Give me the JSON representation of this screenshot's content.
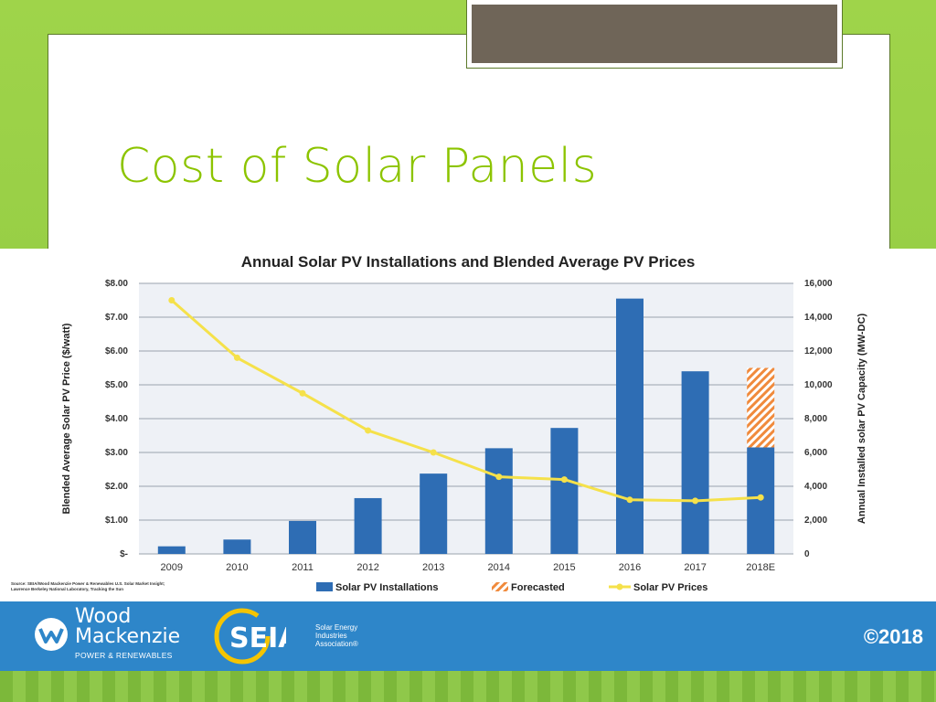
{
  "slide": {
    "title": "Cost of Solar Panels"
  },
  "colors": {
    "bar": "#2e6db4",
    "forecast": "#f08a3c",
    "price_line": "#f5e14a",
    "title_green": "#8cc400",
    "footer_blue": "#2e86c9"
  },
  "chart_data": {
    "type": "bar",
    "title": "Annual Solar PV Installations and Blended Average PV Prices",
    "categories": [
      "2009",
      "2010",
      "2011",
      "2012",
      "2013",
      "2014",
      "2015",
      "2016",
      "2017",
      "2018E"
    ],
    "series": [
      {
        "name": "Solar PV Installations",
        "type": "bar",
        "axis": "right",
        "values": [
          450,
          850,
          1950,
          3300,
          4750,
          6250,
          7450,
          15100,
          10800,
          6300
        ]
      },
      {
        "name": "Forecasted",
        "type": "bar-stacked",
        "axis": "right",
        "values": [
          0,
          0,
          0,
          0,
          0,
          0,
          0,
          0,
          0,
          4700
        ]
      },
      {
        "name": "Solar PV Prices",
        "type": "line",
        "axis": "left",
        "values": [
          7.5,
          5.8,
          4.75,
          3.65,
          3.0,
          2.28,
          2.2,
          1.6,
          1.57,
          1.67
        ]
      }
    ],
    "ylabel_left": "Blended Average Solar PV Price ($/watt)",
    "ylabel_right": "Annual Installed solar PV Capacity (MW-DC)",
    "ylim_left": [
      0,
      8
    ],
    "ylim_right": [
      0,
      16000
    ],
    "left_ticks": [
      "$-",
      "$1.00",
      "$2.00",
      "$3.00",
      "$4.00",
      "$5.00",
      "$6.00",
      "$7.00",
      "$8.00"
    ],
    "right_ticks": [
      "0",
      "2,000",
      "4,000",
      "6,000",
      "8,000",
      "10,000",
      "12,000",
      "14,000",
      "16,000"
    ],
    "grid": true,
    "legend_position": "bottom"
  },
  "source": {
    "line1": "Source: SEIA/Wood Mackenzie Power & Renewables U.S. Solar Market Insight;",
    "line2": "Lawrence Berkeley National Laboratory, Tracking the Sun"
  },
  "footer": {
    "wm_name_1": "Wood",
    "wm_name_2": "Mackenzie",
    "wm_sub": "POWER & RENEWABLES",
    "seia_logo_text": "SEIA",
    "seia_sub_1": "Solar Energy",
    "seia_sub_2": "Industries",
    "seia_sub_3": "Association®",
    "copyright": "©2018"
  }
}
